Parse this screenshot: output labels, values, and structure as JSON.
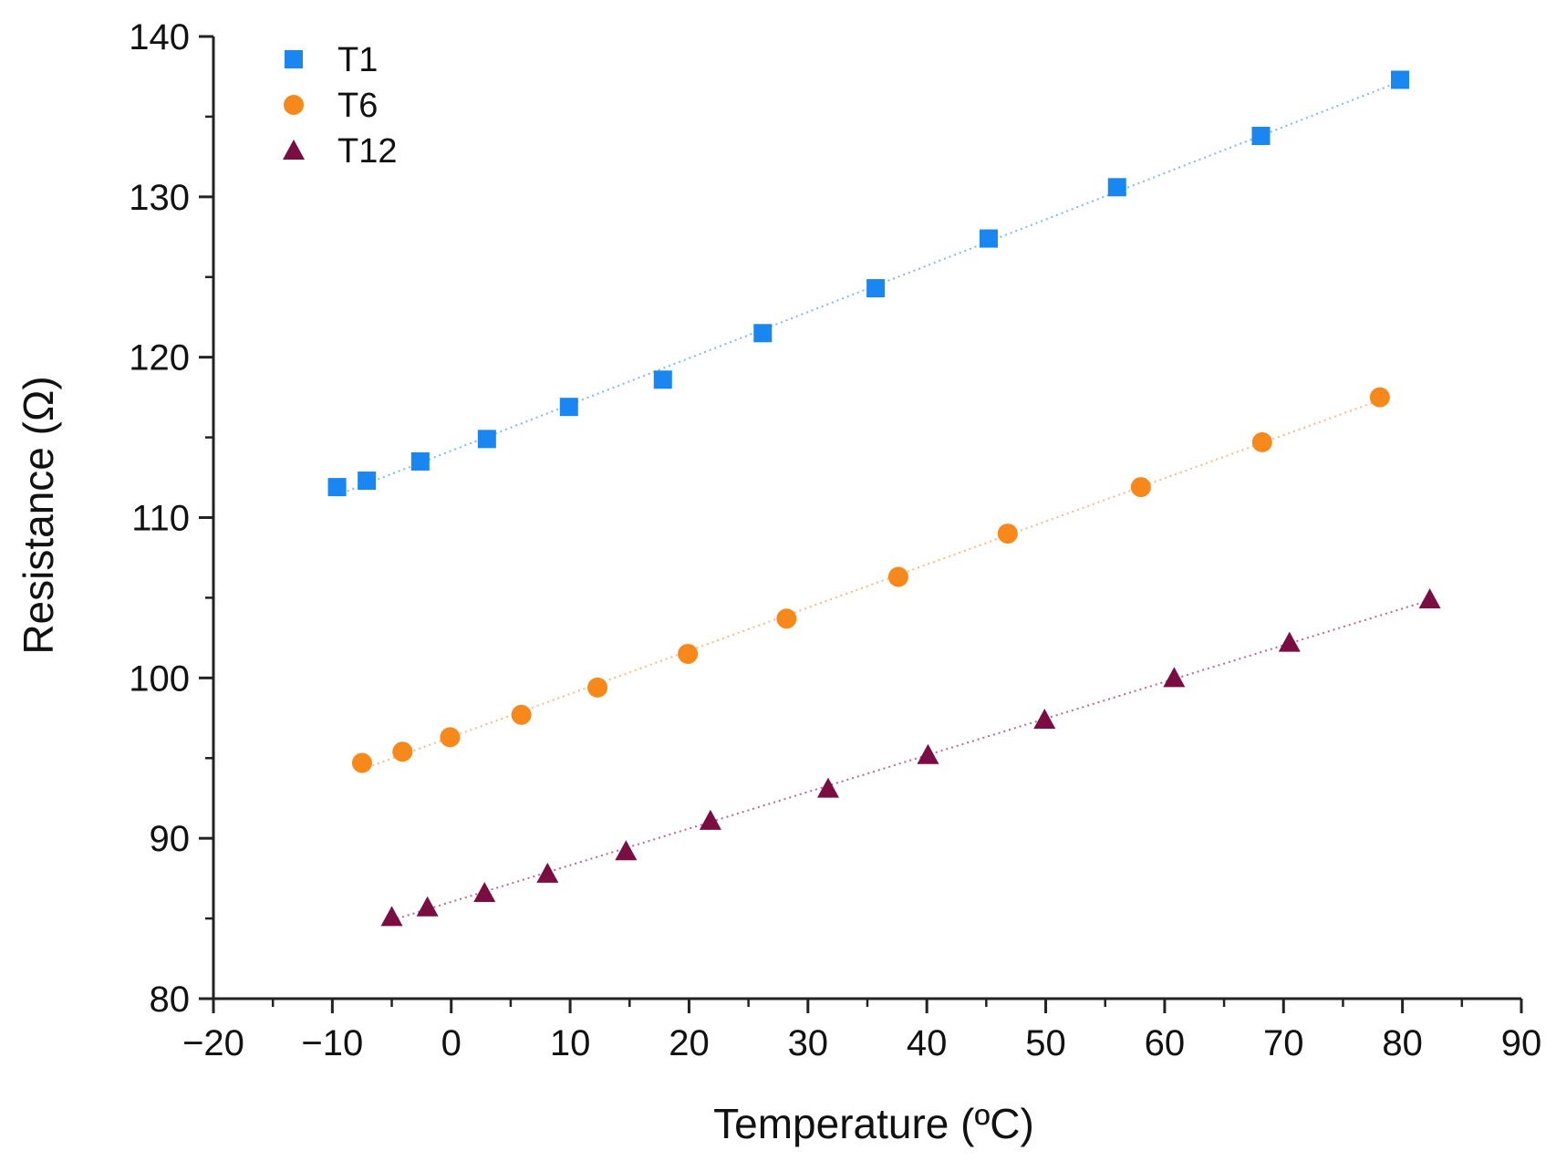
{
  "chart_data": {
    "type": "scatter",
    "title": "",
    "xlabel": "Temperature (ºC)",
    "ylabel": "Resistance (Ω)",
    "xlim": [
      -20,
      90
    ],
    "ylim": [
      80,
      140
    ],
    "xticks": [
      -20,
      -10,
      0,
      10,
      20,
      30,
      40,
      50,
      60,
      70,
      80,
      90
    ],
    "xtick_labels": [
      "−20",
      "−10",
      "0",
      "10",
      "20",
      "30",
      "40",
      "50",
      "60",
      "70",
      "80",
      "90"
    ],
    "yticks": [
      80,
      90,
      100,
      110,
      120,
      130,
      140
    ],
    "ytick_labels": [
      "80",
      "90",
      "100",
      "110",
      "120",
      "130",
      "140"
    ],
    "grid": false,
    "legend_position": "top-left",
    "series": [
      {
        "name": "T1",
        "marker": "square",
        "color": "#1a86f0",
        "fit_color": "#7fb8f0",
        "x": [
          -9.6,
          -7.1,
          -2.6,
          3.0,
          9.9,
          17.8,
          26.2,
          35.7,
          45.2,
          56.0,
          68.1,
          79.8
        ],
        "y": [
          111.9,
          112.3,
          113.5,
          114.9,
          116.9,
          118.6,
          121.5,
          124.3,
          127.4,
          130.6,
          133.8,
          137.3
        ]
      },
      {
        "name": "T6",
        "marker": "circle",
        "color": "#f7891c",
        "fit_color": "#f6b98a",
        "x": [
          -7.5,
          -4.1,
          -0.1,
          5.9,
          12.3,
          19.9,
          28.2,
          37.6,
          46.8,
          58.0,
          68.2,
          78.1
        ],
        "y": [
          94.7,
          95.4,
          96.3,
          97.7,
          99.4,
          101.5,
          103.7,
          106.3,
          109.0,
          111.9,
          114.7,
          117.5
        ]
      },
      {
        "name": "T12",
        "marker": "triangle",
        "color": "#7a0e42",
        "fit_color": "#b56a8e",
        "x": [
          -5.0,
          -2.0,
          2.8,
          8.1,
          14.7,
          21.8,
          31.7,
          40.1,
          49.9,
          60.8,
          70.5,
          82.3
        ],
        "y": [
          85.1,
          85.7,
          86.6,
          87.8,
          89.2,
          91.1,
          93.1,
          95.2,
          97.4,
          100.0,
          102.2,
          104.9
        ]
      }
    ]
  }
}
